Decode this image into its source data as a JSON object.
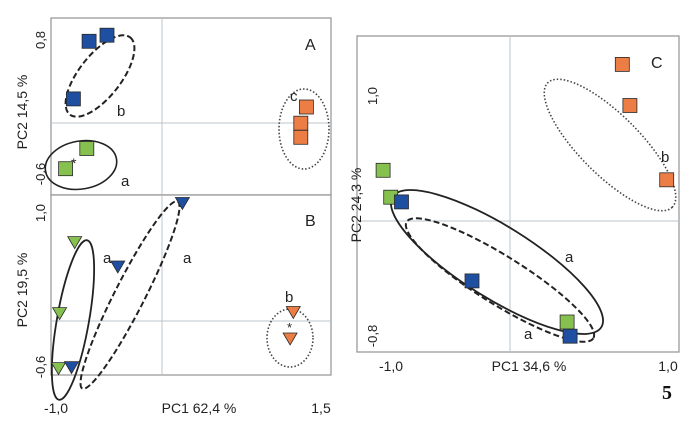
{
  "figure_number": "5",
  "colors": {
    "frame": "#9a9a9a",
    "gridline": "#b8c4cc",
    "blue": "#1f4fa0",
    "green": "#86c04f",
    "orange": "#ec7e45",
    "outline": "#222222"
  },
  "chart_data": [
    {
      "type": "scatter",
      "panel": "A",
      "xlabel": "",
      "ylabel": "PC2 14,5 %",
      "yticks": [
        "0,8",
        "-0,6"
      ],
      "xlim": [
        -1.0,
        1.5
      ],
      "ylim": [
        -0.8,
        0.95
      ],
      "series": [
        {
          "color": "blue",
          "marker": "square",
          "points": [
            [
              -0.66,
              0.72
            ],
            [
              -0.5,
              0.78
            ],
            [
              -0.8,
              0.15
            ]
          ]
        },
        {
          "color": "green",
          "marker": "square",
          "points": [
            [
              -0.68,
              -0.34
            ],
            [
              -0.87,
              -0.54
            ]
          ]
        },
        {
          "color": "orange",
          "marker": "square",
          "points": [
            [
              1.28,
              0.07
            ],
            [
              1.23,
              -0.09
            ],
            [
              1.23,
              -0.23
            ]
          ]
        }
      ],
      "groups": [
        {
          "label": "b",
          "style": "dashed"
        },
        {
          "label": "a",
          "style": "solid"
        },
        {
          "label": "c",
          "style": "dotted"
        }
      ],
      "annotations": [
        "*"
      ]
    },
    {
      "type": "scatter",
      "panel": "B",
      "xlabel": "PC1 62,4 %",
      "ylabel": "PC2 19,5 %",
      "xticks": [
        "-1,0",
        "1,5"
      ],
      "yticks": [
        "1,0",
        "-0,6"
      ],
      "xlim": [
        -1.05,
        1.55
      ],
      "ylim": [
        -0.65,
        1.05
      ],
      "series": [
        {
          "color": "green",
          "marker": "triangle-down",
          "points": [
            [
              -0.83,
              0.6
            ],
            [
              -0.97,
              -0.07
            ],
            [
              -0.98,
              -0.59
            ]
          ]
        },
        {
          "color": "blue",
          "marker": "triangle-down",
          "points": [
            [
              0.17,
              0.97
            ],
            [
              -0.43,
              0.37
            ],
            [
              -0.86,
              -0.58
            ]
          ]
        },
        {
          "color": "orange",
          "marker": "triangle-down",
          "points": [
            [
              1.2,
              -0.06
            ],
            [
              1.17,
              -0.31
            ]
          ]
        }
      ],
      "groups": [
        {
          "label": "a",
          "style": "solid"
        },
        {
          "label": "a",
          "style": "dashed"
        },
        {
          "label": "b",
          "style": "dotted"
        }
      ],
      "annotations": [
        "*"
      ]
    },
    {
      "type": "scatter",
      "panel": "C",
      "xlabel": "PC1 34,6 %",
      "ylabel": "PC2 24,3 %",
      "xticks": [
        "-1,0",
        "1,0"
      ],
      "yticks": [
        "1,0",
        "-0,8"
      ],
      "xlim": [
        -1.05,
        1.05
      ],
      "ylim": [
        -0.85,
        1.15
      ],
      "series": [
        {
          "color": "green",
          "marker": "square",
          "points": [
            [
              -0.88,
              0.3
            ],
            [
              -0.83,
              0.13
            ],
            [
              0.32,
              -0.66
            ]
          ]
        },
        {
          "color": "blue",
          "marker": "square",
          "points": [
            [
              -0.76,
              0.1
            ],
            [
              -0.3,
              -0.4
            ],
            [
              0.34,
              -0.75
            ]
          ]
        },
        {
          "color": "orange",
          "marker": "square",
          "points": [
            [
              0.68,
              0.97
            ],
            [
              0.73,
              0.71
            ],
            [
              0.97,
              0.24
            ]
          ]
        }
      ],
      "groups": [
        {
          "label": "b",
          "style": "dotted"
        },
        {
          "label": "a",
          "style": "solid"
        },
        {
          "label": "a",
          "style": "dashed"
        }
      ]
    }
  ]
}
